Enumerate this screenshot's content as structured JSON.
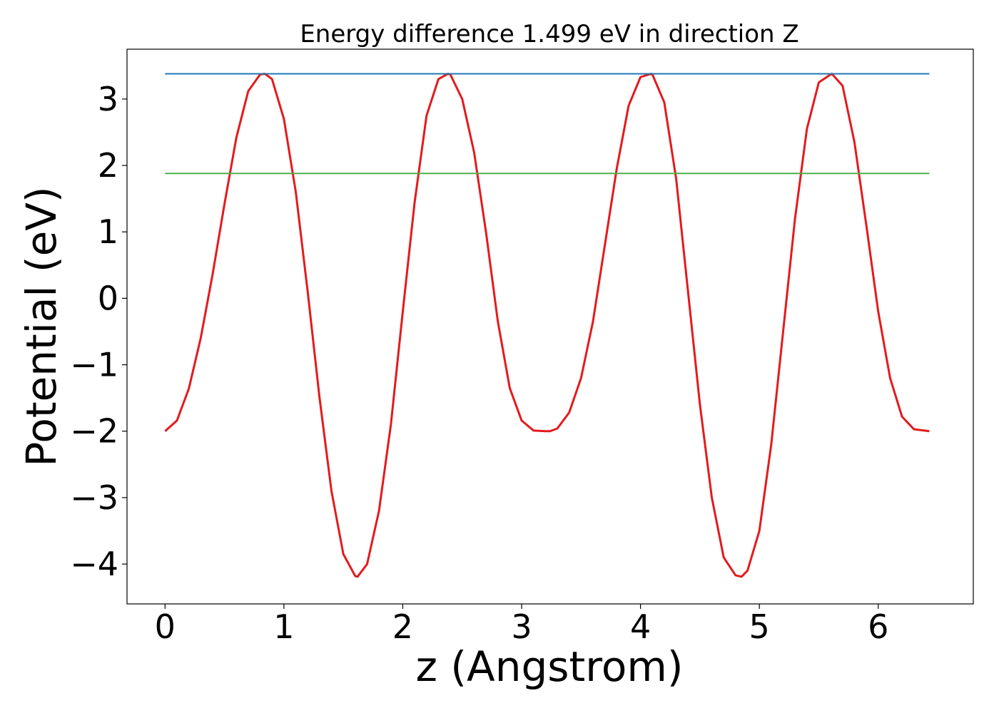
{
  "chart_data": {
    "type": "line",
    "title": "Energy difference 1.499 eV in direction Z",
    "xlabel": "z (Angstrom)",
    "ylabel": "Potential (eV)",
    "xlim": [
      -0.32,
      6.8
    ],
    "ylim": [
      -4.6,
      3.75
    ],
    "xticks": [
      0,
      1,
      2,
      3,
      4,
      5,
      6
    ],
    "yticks": [
      -4,
      -3,
      -2,
      -1,
      0,
      1,
      2,
      3
    ],
    "ytick_labels": [
      "−4",
      "−3",
      "−2",
      "−1",
      "0",
      "1",
      "2",
      "3"
    ],
    "grid": false,
    "series": [
      {
        "kind": "curve",
        "color": "#e41a1c",
        "x": [
          0.0,
          0.1,
          0.2,
          0.3,
          0.4,
          0.5,
          0.6,
          0.7,
          0.8,
          0.84,
          0.9,
          1.0,
          1.1,
          1.2,
          1.3,
          1.4,
          1.5,
          1.6,
          1.62,
          1.7,
          1.8,
          1.9,
          2.0,
          2.1,
          2.2,
          2.3,
          2.38,
          2.4,
          2.5,
          2.6,
          2.7,
          2.8,
          2.9,
          3.0,
          3.1,
          3.2,
          3.24,
          3.3,
          3.4,
          3.5,
          3.6,
          3.7,
          3.8,
          3.9,
          4.0,
          4.09,
          4.1,
          4.2,
          4.3,
          4.4,
          4.5,
          4.6,
          4.7,
          4.8,
          4.85,
          4.9,
          5.0,
          5.1,
          5.2,
          5.3,
          5.4,
          5.5,
          5.6,
          5.61,
          5.7,
          5.8,
          5.9,
          6.0,
          6.1,
          6.2,
          6.3,
          6.43
        ],
        "y": [
          -2.0,
          -1.84,
          -1.36,
          -0.6,
          0.36,
          1.42,
          2.42,
          3.12,
          3.37,
          3.38,
          3.3,
          2.7,
          1.6,
          0.1,
          -1.5,
          -2.9,
          -3.85,
          -4.18,
          -4.19,
          -4.0,
          -3.2,
          -1.9,
          -0.2,
          1.45,
          2.75,
          3.3,
          3.38,
          3.37,
          3.0,
          2.2,
          1.0,
          -0.35,
          -1.35,
          -1.84,
          -1.99,
          -2.0,
          -2.0,
          -1.96,
          -1.72,
          -1.2,
          -0.35,
          0.8,
          1.95,
          2.9,
          3.33,
          3.38,
          3.37,
          2.95,
          1.8,
          0.1,
          -1.6,
          -3.0,
          -3.9,
          -4.17,
          -4.19,
          -4.1,
          -3.5,
          -2.2,
          -0.5,
          1.2,
          2.55,
          3.25,
          3.37,
          3.38,
          3.2,
          2.35,
          1.1,
          -0.2,
          -1.2,
          -1.78,
          -1.97,
          -2.0
        ]
      },
      {
        "kind": "hline",
        "color": "#1f77b4",
        "x": [
          0.0,
          6.43
        ],
        "y": [
          3.38,
          3.38
        ]
      },
      {
        "kind": "hline",
        "color": "#4daf4a",
        "x": [
          0.0,
          6.43
        ],
        "y": [
          1.88,
          1.88
        ]
      }
    ]
  }
}
